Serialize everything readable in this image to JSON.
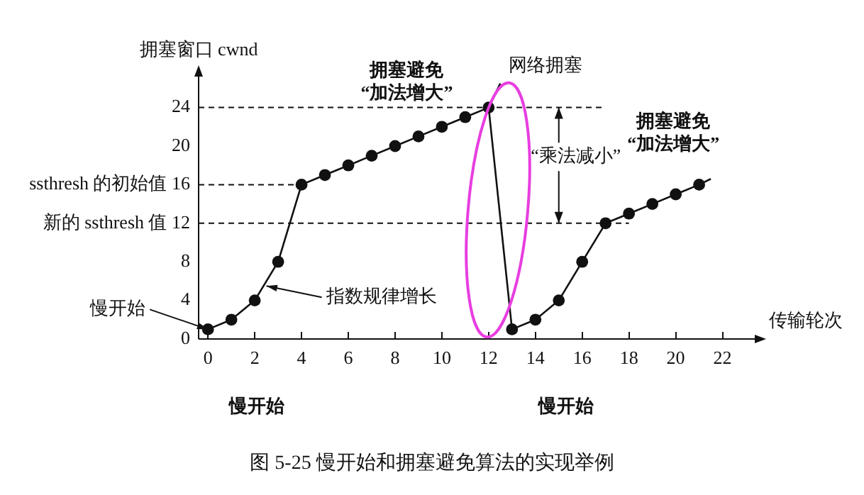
{
  "chart_data": {
    "type": "line",
    "xlabel": "传输轮次",
    "ylabel": "拥塞窗口 cwnd",
    "x": [
      0,
      1,
      2,
      3,
      4,
      5,
      6,
      7,
      8,
      9,
      10,
      11,
      12,
      13,
      14,
      15,
      16,
      17,
      18,
      19,
      20,
      21
    ],
    "series": [
      {
        "color": "#111111",
        "values": [
          1,
          2,
          4,
          8,
          16,
          17,
          18,
          19,
          20,
          21,
          22,
          23,
          24,
          1,
          2,
          4,
          8,
          12,
          13,
          14,
          15,
          16
        ]
      },
      {
        "color": "#111111",
        "x": [
          12,
          12.5
        ],
        "values": [
          24,
          26.5
        ],
        "marker": "none"
      },
      {
        "color": "#111111",
        "x": [
          21,
          21.5
        ],
        "values": [
          16,
          16.6
        ],
        "marker": "none"
      }
    ],
    "xlim": [
      -0.4,
      23.5
    ],
    "ylim": [
      0,
      27.5
    ],
    "xticks": [
      0,
      2,
      4,
      6,
      8,
      10,
      12,
      14,
      16,
      18,
      20,
      22
    ],
    "yticks": [
      0,
      4,
      8,
      {
        "value": 12,
        "label": "新的 ssthresh 值 12"
      },
      {
        "value": 16,
        "label": "ssthresh 的初始值 16"
      },
      20,
      24
    ],
    "ref_lines": [
      {
        "axis": "y",
        "value": 24,
        "line_style": "dashed",
        "color": "#111111"
      },
      {
        "axis": "y",
        "value": 16,
        "line_style": "dashed",
        "color": "#111111"
      },
      {
        "axis": "y",
        "value": 12,
        "line_style": "dashed",
        "color": "#111111"
      }
    ],
    "annotations": [
      "拥塞避免\n“加法增大”",
      {
        "text": "网络拥塞",
        "x": 12.5,
        "y": 26.5
      },
      {
        "text": "“乘法减小”",
        "x": 15,
        "y": 12
      },
      "拥塞避免\n“加法增大”",
      {
        "text": "指数规律增长",
        "x": 2.5,
        "y": 5.5
      },
      {
        "text": "慢开始",
        "x": 0,
        "y": 1
      },
      "慢开始",
      "慢开始",
      "图 5-25 慢开始和拥塞避免算法的实现举例"
    ],
    "grid": false,
    "legend": false,
    "line_style": "solid",
    "marker": "circle"
  }
}
